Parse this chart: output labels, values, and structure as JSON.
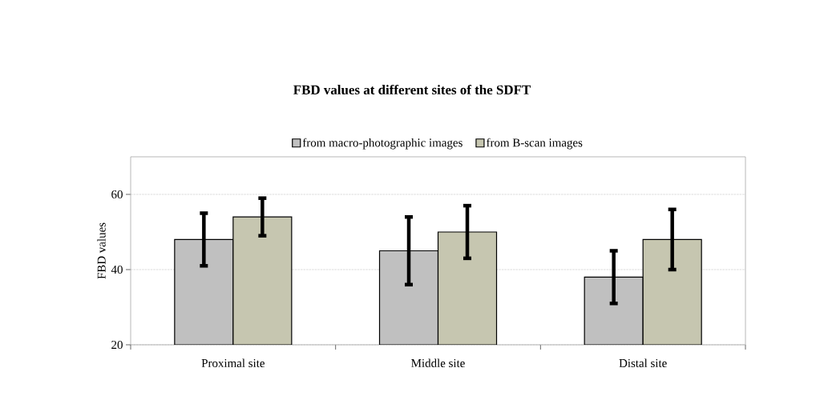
{
  "chart_data": {
    "type": "bar",
    "title": "FBD values at different sites of the SDFT",
    "ylabel": "FBD values",
    "categories": [
      "Proximal site",
      "Middle site",
      "Distal site"
    ],
    "series": [
      {
        "name": "from macro-photographic images",
        "color": "#c0c0c0",
        "values": [
          48,
          45,
          38
        ],
        "errors": [
          7,
          9,
          7
        ]
      },
      {
        "name": "from B-scan images",
        "color": "#c6c6b0",
        "values": [
          54,
          50,
          48
        ],
        "errors": [
          5,
          7,
          8
        ]
      }
    ],
    "ylim": [
      20,
      70
    ],
    "yticks": [
      20,
      40,
      60
    ],
    "grid": "y",
    "legend": "top"
  }
}
